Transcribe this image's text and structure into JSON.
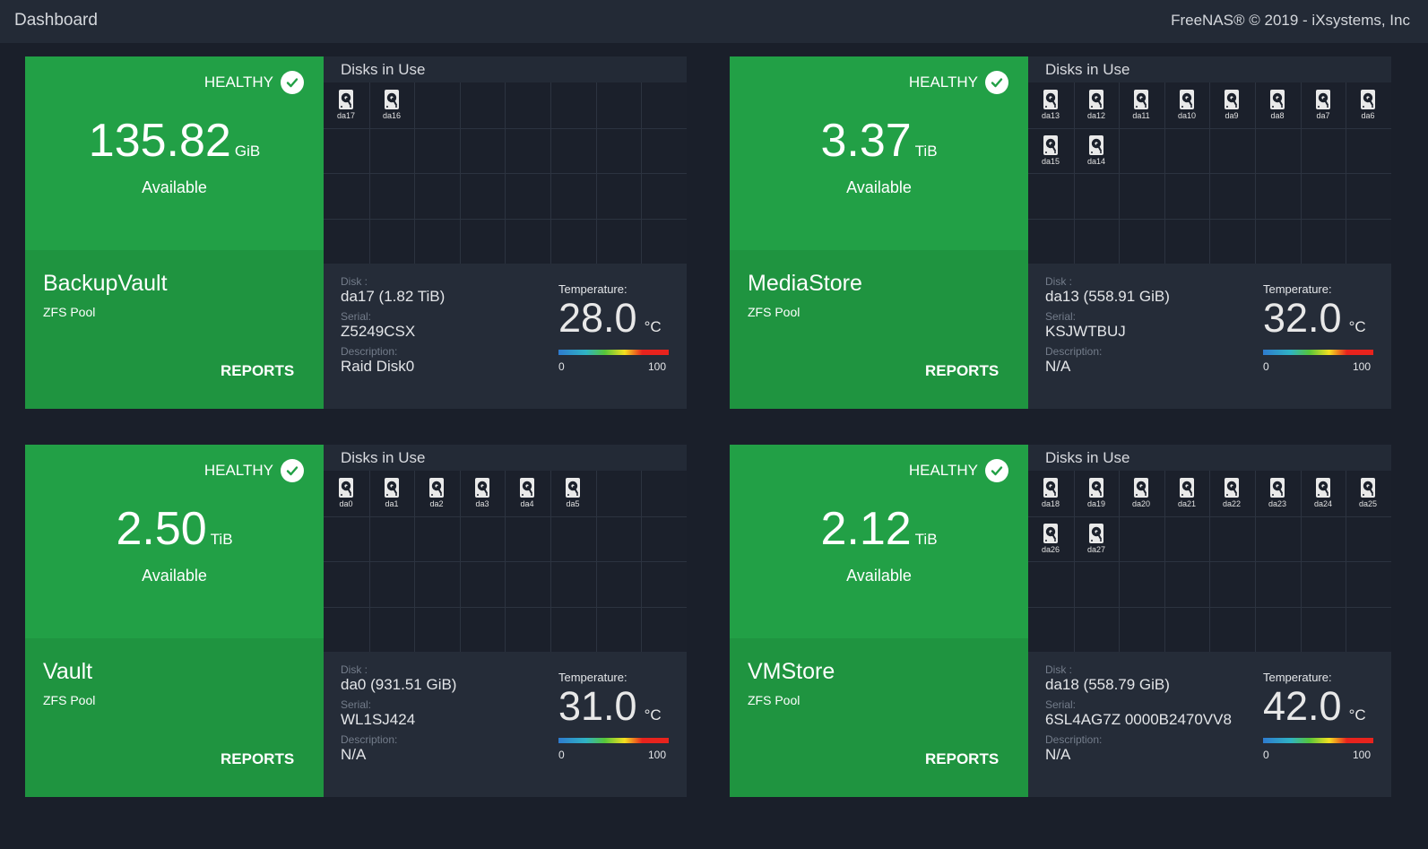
{
  "header": {
    "title": "Dashboard",
    "copyright": "FreeNAS® © 2019 - iXsystems, Inc"
  },
  "icons": {
    "health": "check-circle-icon",
    "disk": "hard-disk-icon"
  },
  "colors": {
    "healthy_green": "#22a046",
    "panel_dark": "#1b202b",
    "info_panel": "#252c38",
    "topbar": "#232a36"
  },
  "pools": [
    {
      "name": "BackupVault",
      "type": "ZFS Pool",
      "status": "HEALTHY",
      "available": "135.82",
      "unit": "GiB",
      "available_label": "Available",
      "reports_label": "REPORTS",
      "disks_title": "Disks in Use",
      "disks": [
        "da17",
        "da16"
      ],
      "disk_label": "Disk :",
      "disk_value": "da17 (1.82 TiB)",
      "serial_label": "Serial:",
      "serial_value": "Z5249CSX",
      "desc_label": "Description:",
      "desc_value": "Raid Disk0",
      "temp_label": "Temperature:",
      "temp_value": "28.0",
      "temp_unit": "°C",
      "temp_min": "0",
      "temp_max": "100"
    },
    {
      "name": "MediaStore",
      "type": "ZFS Pool",
      "status": "HEALTHY",
      "available": "3.37",
      "unit": "TiB",
      "available_label": "Available",
      "reports_label": "REPORTS",
      "disks_title": "Disks in Use",
      "disks": [
        "da13",
        "da12",
        "da11",
        "da10",
        "da9",
        "da8",
        "da7",
        "da6",
        "da15",
        "da14"
      ],
      "disk_label": "Disk :",
      "disk_value": "da13 (558.91 GiB)",
      "serial_label": "Serial:",
      "serial_value": "KSJWTBUJ",
      "desc_label": "Description:",
      "desc_value": "N/A",
      "temp_label": "Temperature:",
      "temp_value": "32.0",
      "temp_unit": "°C",
      "temp_min": "0",
      "temp_max": "100"
    },
    {
      "name": "Vault",
      "type": "ZFS Pool",
      "status": "HEALTHY",
      "available": "2.50",
      "unit": "TiB",
      "available_label": "Available",
      "reports_label": "REPORTS",
      "disks_title": "Disks in Use",
      "disks": [
        "da0",
        "da1",
        "da2",
        "da3",
        "da4",
        "da5"
      ],
      "disk_label": "Disk :",
      "disk_value": "da0 (931.51 GiB)",
      "serial_label": "Serial:",
      "serial_value": "WL1SJ424",
      "desc_label": "Description:",
      "desc_value": "N/A",
      "temp_label": "Temperature:",
      "temp_value": "31.0",
      "temp_unit": "°C",
      "temp_min": "0",
      "temp_max": "100"
    },
    {
      "name": "VMStore",
      "type": "ZFS Pool",
      "status": "HEALTHY",
      "available": "2.12",
      "unit": "TiB",
      "available_label": "Available",
      "reports_label": "REPORTS",
      "disks_title": "Disks in Use",
      "disks": [
        "da18",
        "da19",
        "da20",
        "da21",
        "da22",
        "da23",
        "da24",
        "da25",
        "da26",
        "da27"
      ],
      "disk_label": "Disk :",
      "disk_value": "da18 (558.79 GiB)",
      "serial_label": "Serial:",
      "serial_value": "6SL4AG7Z 0000B2470VV8",
      "desc_label": "Description:",
      "desc_value": "N/A",
      "temp_label": "Temperature:",
      "temp_value": "42.0",
      "temp_unit": "°C",
      "temp_min": "0",
      "temp_max": "100"
    }
  ]
}
